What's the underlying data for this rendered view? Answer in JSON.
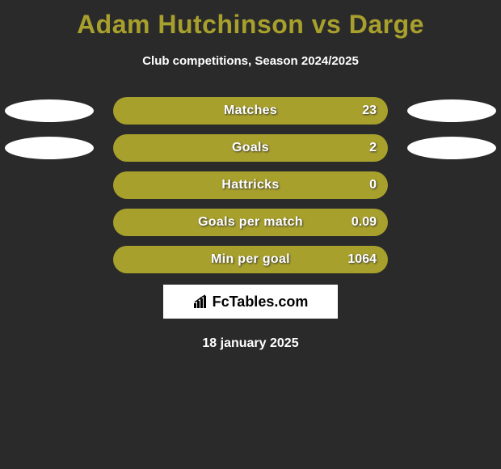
{
  "title": "Adam Hutchinson vs Darge",
  "subtitle": "Club competitions, Season 2024/2025",
  "title_color": "#a8a02c",
  "subtitle_color": "#ffffff",
  "background_color": "#2a2a2a",
  "pill_color": "#a8a02c",
  "pill_text_color": "#ffffff",
  "ellipse_color": "#ffffff",
  "title_fontsize": 32,
  "subtitle_fontsize": 15,
  "stat_fontsize": 16,
  "stats": [
    {
      "label": "Matches",
      "value": "23",
      "left_ellipse": true,
      "right_ellipse": true
    },
    {
      "label": "Goals",
      "value": "2",
      "left_ellipse": true,
      "right_ellipse": true
    },
    {
      "label": "Hattricks",
      "value": "0",
      "left_ellipse": false,
      "right_ellipse": false
    },
    {
      "label": "Goals per match",
      "value": "0.09",
      "left_ellipse": false,
      "right_ellipse": false
    },
    {
      "label": "Min per goal",
      "value": "1064",
      "left_ellipse": false,
      "right_ellipse": false
    }
  ],
  "logo_text": "FcTables.com",
  "logo_bg": "#ffffff",
  "logo_color": "#000000",
  "date": "18 january 2025",
  "date_color": "#ffffff"
}
